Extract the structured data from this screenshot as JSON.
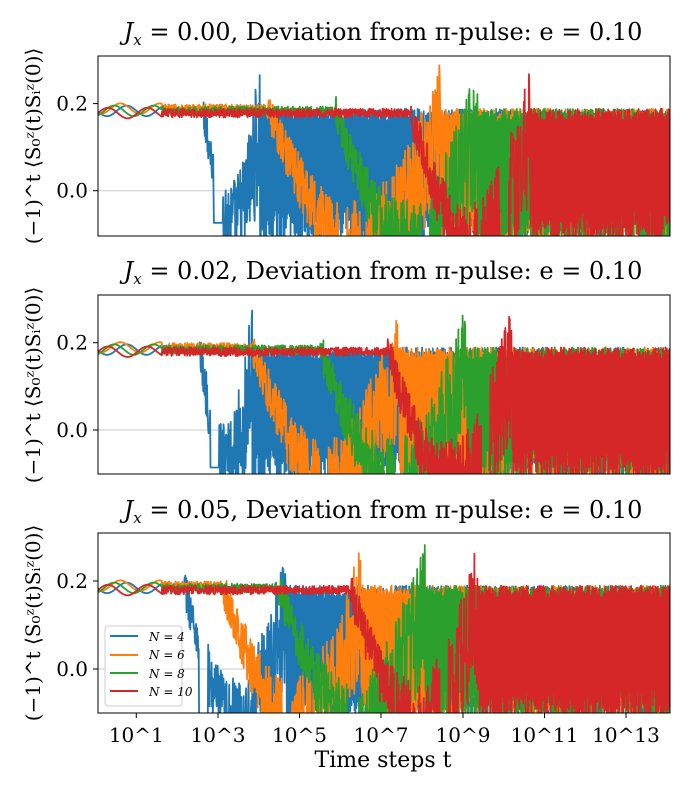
{
  "chart_data": [
    {
      "type": "line",
      "title": "J_x = 0.00, Deviation from π-pulse: e = 0.10",
      "title_parts": {
        "symbol": "J",
        "sub": "x",
        "rest": " = 0.00, Deviation from π-pulse: e = 0.10"
      },
      "ylabel": "(−1)^t ⟨S₀ᶻ(t)Sᵢᶻ(0)⟩",
      "xscale": "log",
      "xlim_log10": [
        -0.5,
        14.7
      ],
      "ylim": [
        -0.1,
        0.31
      ],
      "yticks": [
        {
          "value": 0.0,
          "label": "0.0"
        },
        {
          "value": 0.2,
          "label": "0.2"
        }
      ],
      "hline": 0.0,
      "series": [
        {
          "name": "N = 4",
          "color": "#1f77b4",
          "plateau": 0.185,
          "decay_log10": 2.3,
          "dip_log10": 2.7,
          "dip_value": -0.07,
          "noise_start_log10": 3.8,
          "late_level": 0.17
        },
        {
          "name": "N = 6",
          "color": "#ff7f0e",
          "plateau": 0.19,
          "decay_log10": 4.0,
          "dip_log10": 6.0,
          "dip_value": -0.12,
          "noise_start_log10": 8.6,
          "late_level": 0.17
        },
        {
          "name": "N = 8",
          "color": "#2ca02c",
          "plateau": 0.185,
          "decay_log10": 5.8,
          "dip_log10": 8.2,
          "dip_value": -0.12,
          "noise_start_log10": 9.6,
          "late_level": 0.17
        },
        {
          "name": "N = 10",
          "color": "#d62728",
          "plateau": 0.18,
          "decay_log10": 7.8,
          "dip_log10": 10.3,
          "dip_value": -0.12,
          "noise_start_log10": 11.0,
          "late_level": 0.17
        }
      ]
    },
    {
      "type": "line",
      "title": "J_x = 0.02, Deviation from π-pulse: e = 0.10",
      "title_parts": {
        "symbol": "J",
        "sub": "x",
        "rest": " = 0.02, Deviation from π-pulse: e = 0.10"
      },
      "ylabel": "(−1)^t ⟨S₀ᶻ(t)Sᵢᶻ(0)⟩",
      "xscale": "log",
      "xlim_log10": [
        -0.5,
        14.7
      ],
      "ylim": [
        -0.1,
        0.31
      ],
      "yticks": [
        {
          "value": 0.0,
          "label": "0.0"
        },
        {
          "value": 0.2,
          "label": "0.2"
        }
      ],
      "hline": 0.0,
      "series": [
        {
          "name": "N = 4",
          "color": "#1f77b4",
          "plateau": 0.185,
          "decay_log10": 2.2,
          "dip_log10": 2.6,
          "dip_value": -0.085,
          "noise_start_log10": 3.6,
          "late_level": 0.17
        },
        {
          "name": "N = 6",
          "color": "#ff7f0e",
          "plateau": 0.19,
          "decay_log10": 3.6,
          "dip_log10": 5.5,
          "dip_value": -0.12,
          "noise_start_log10": 7.5,
          "late_level": 0.17
        },
        {
          "name": "N = 8",
          "color": "#2ca02c",
          "plateau": 0.185,
          "decay_log10": 5.4,
          "dip_log10": 7.5,
          "dip_value": -0.12,
          "noise_start_log10": 9.3,
          "late_level": 0.17
        },
        {
          "name": "N = 10",
          "color": "#d62728",
          "plateau": 0.18,
          "decay_log10": 7.2,
          "dip_log10": 9.8,
          "dip_value": -0.12,
          "noise_start_log10": 10.5,
          "late_level": 0.17
        }
      ]
    },
    {
      "type": "line",
      "title": "J_x = 0.05, Deviation from π-pulse: e = 0.10",
      "title_parts": {
        "symbol": "J",
        "sub": "x",
        "rest": " = 0.05, Deviation from π-pulse: e = 0.10"
      },
      "ylabel": "(−1)^t ⟨S₀ᶻ(t)Sᵢᶻ(0)⟩",
      "xlabel": "Time steps t",
      "xscale": "log",
      "xlim_log10": [
        -0.5,
        14.7
      ],
      "ylim": [
        -0.1,
        0.31
      ],
      "yticks": [
        {
          "value": 0.0,
          "label": "0.0"
        },
        {
          "value": 0.2,
          "label": "0.2"
        }
      ],
      "xticks": [
        {
          "value": 1,
          "label": "10^1"
        },
        {
          "value": 3,
          "label": "10^3"
        },
        {
          "value": 5,
          "label": "10^5"
        },
        {
          "value": 7,
          "label": "10^7"
        },
        {
          "value": 9,
          "label": "10^9"
        },
        {
          "value": 11,
          "label": "10^11"
        },
        {
          "value": 13,
          "label": "10^13"
        }
      ],
      "hline": 0.0,
      "legend": {
        "location": "lower-left",
        "entries": [
          "N = 4",
          "N = 6",
          "N = 8",
          "N = 10"
        ]
      },
      "series": [
        {
          "name": "N = 4",
          "color": "#1f77b4",
          "plateau": 0.185,
          "decay_log10": 1.8,
          "dip_log10": 2.3,
          "dip_value": -0.12,
          "noise_start_log10": 4.5,
          "late_level": 0.17
        },
        {
          "name": "N = 6",
          "color": "#ff7f0e",
          "plateau": 0.19,
          "decay_log10": 2.8,
          "dip_log10": 4.5,
          "dip_value": -0.12,
          "noise_start_log10": 6.5,
          "late_level": 0.17
        },
        {
          "name": "N = 8",
          "color": "#2ca02c",
          "plateau": 0.185,
          "decay_log10": 4.3,
          "dip_log10": 6.3,
          "dip_value": -0.12,
          "noise_start_log10": 8.2,
          "late_level": 0.17
        },
        {
          "name": "N = 10",
          "color": "#d62728",
          "plateau": 0.18,
          "decay_log10": 6.2,
          "dip_log10": 8.7,
          "dip_value": -0.12,
          "noise_start_log10": 9.6,
          "late_level": 0.17
        }
      ]
    }
  ]
}
